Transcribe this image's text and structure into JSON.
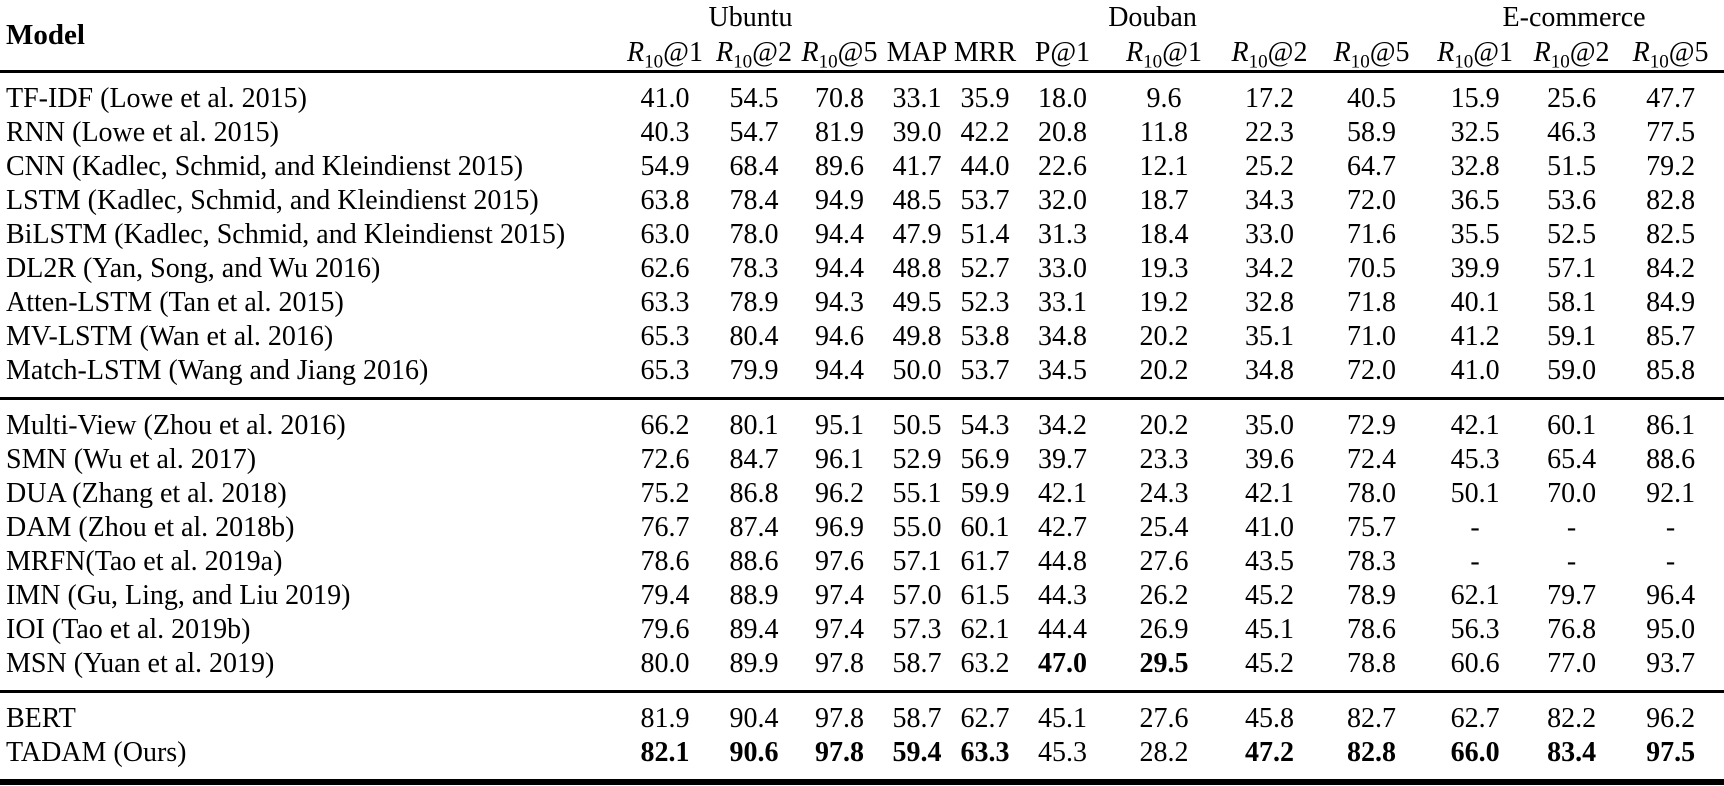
{
  "page": {
    "background_color": "#ffffff",
    "text_color": "#000000"
  },
  "table": {
    "model_header": "Model",
    "groups": [
      {
        "label": "Ubuntu",
        "metrics": [
          "R10@1",
          "R10@2",
          "R10@5"
        ]
      },
      {
        "label": "Douban",
        "metrics": [
          "MAP",
          "MRR",
          "P@1",
          "R10@1",
          "R10@2",
          "R10@5"
        ]
      },
      {
        "label": "E-commerce",
        "metrics": [
          "R10@1",
          "R10@2",
          "R10@5"
        ]
      }
    ],
    "sections": [
      {
        "rows": [
          {
            "model": "TF-IDF (Lowe et al. 2015)",
            "values": [
              "41.0",
              "54.5",
              "70.8",
              "33.1",
              "35.9",
              "18.0",
              "9.6",
              "17.2",
              "40.5",
              "15.9",
              "25.6",
              "47.7"
            ],
            "bold": []
          },
          {
            "model": "RNN (Lowe et al. 2015)",
            "values": [
              "40.3",
              "54.7",
              "81.9",
              "39.0",
              "42.2",
              "20.8",
              "11.8",
              "22.3",
              "58.9",
              "32.5",
              "46.3",
              "77.5"
            ],
            "bold": []
          },
          {
            "model": "CNN (Kadlec, Schmid, and Kleindienst 2015)",
            "values": [
              "54.9",
              "68.4",
              "89.6",
              "41.7",
              "44.0",
              "22.6",
              "12.1",
              "25.2",
              "64.7",
              "32.8",
              "51.5",
              "79.2"
            ],
            "bold": []
          },
          {
            "model": "LSTM (Kadlec, Schmid, and Kleindienst 2015)",
            "values": [
              "63.8",
              "78.4",
              "94.9",
              "48.5",
              "53.7",
              "32.0",
              "18.7",
              "34.3",
              "72.0",
              "36.5",
              "53.6",
              "82.8"
            ],
            "bold": []
          },
          {
            "model": "BiLSTM (Kadlec, Schmid, and Kleindienst 2015)",
            "values": [
              "63.0",
              "78.0",
              "94.4",
              "47.9",
              "51.4",
              "31.3",
              "18.4",
              "33.0",
              "71.6",
              "35.5",
              "52.5",
              "82.5"
            ],
            "bold": []
          },
          {
            "model": "DL2R (Yan, Song, and Wu 2016)",
            "values": [
              "62.6",
              "78.3",
              "94.4",
              "48.8",
              "52.7",
              "33.0",
              "19.3",
              "34.2",
              "70.5",
              "39.9",
              "57.1",
              "84.2"
            ],
            "bold": []
          },
          {
            "model": "Atten-LSTM (Tan et al. 2015)",
            "values": [
              "63.3",
              "78.9",
              "94.3",
              "49.5",
              "52.3",
              "33.1",
              "19.2",
              "32.8",
              "71.8",
              "40.1",
              "58.1",
              "84.9"
            ],
            "bold": []
          },
          {
            "model": "MV-LSTM (Wan et al. 2016)",
            "values": [
              "65.3",
              "80.4",
              "94.6",
              "49.8",
              "53.8",
              "34.8",
              "20.2",
              "35.1",
              "71.0",
              "41.2",
              "59.1",
              "85.7"
            ],
            "bold": []
          },
          {
            "model": "Match-LSTM (Wang and Jiang 2016)",
            "values": [
              "65.3",
              "79.9",
              "94.4",
              "50.0",
              "53.7",
              "34.5",
              "20.2",
              "34.8",
              "72.0",
              "41.0",
              "59.0",
              "85.8"
            ],
            "bold": []
          }
        ]
      },
      {
        "rows": [
          {
            "model": "Multi-View (Zhou et al. 2016)",
            "values": [
              "66.2",
              "80.1",
              "95.1",
              "50.5",
              "54.3",
              "34.2",
              "20.2",
              "35.0",
              "72.9",
              "42.1",
              "60.1",
              "86.1"
            ],
            "bold": []
          },
          {
            "model": "SMN (Wu et al. 2017)",
            "values": [
              "72.6",
              "84.7",
              "96.1",
              "52.9",
              "56.9",
              "39.7",
              "23.3",
              "39.6",
              "72.4",
              "45.3",
              "65.4",
              "88.6"
            ],
            "bold": []
          },
          {
            "model": "DUA (Zhang et al. 2018)",
            "values": [
              "75.2",
              "86.8",
              "96.2",
              "55.1",
              "59.9",
              "42.1",
              "24.3",
              "42.1",
              "78.0",
              "50.1",
              "70.0",
              "92.1"
            ],
            "bold": []
          },
          {
            "model": "DAM (Zhou et al. 2018b)",
            "values": [
              "76.7",
              "87.4",
              "96.9",
              "55.0",
              "60.1",
              "42.7",
              "25.4",
              "41.0",
              "75.7",
              "-",
              "-",
              "-"
            ],
            "bold": []
          },
          {
            "model": "MRFN(Tao et al. 2019a)",
            "values": [
              "78.6",
              "88.6",
              "97.6",
              "57.1",
              "61.7",
              "44.8",
              "27.6",
              "43.5",
              "78.3",
              "-",
              "-",
              "-"
            ],
            "bold": []
          },
          {
            "model": "IMN (Gu, Ling, and Liu 2019)",
            "values": [
              "79.4",
              "88.9",
              "97.4",
              "57.0",
              "61.5",
              "44.3",
              "26.2",
              "45.2",
              "78.9",
              "62.1",
              "79.7",
              "96.4"
            ],
            "bold": []
          },
          {
            "model": "IOI (Tao et al. 2019b)",
            "values": [
              "79.6",
              "89.4",
              "97.4",
              "57.3",
              "62.1",
              "44.4",
              "26.9",
              "45.1",
              "78.6",
              "56.3",
              "76.8",
              "95.0"
            ],
            "bold": []
          },
          {
            "model": "MSN (Yuan et al. 2019)",
            "values": [
              "80.0",
              "89.9",
              "97.8",
              "58.7",
              "63.2",
              "47.0",
              "29.5",
              "45.2",
              "78.8",
              "60.6",
              "77.0",
              "93.7"
            ],
            "bold": [
              5,
              6
            ]
          }
        ]
      },
      {
        "rows": [
          {
            "model": "BERT",
            "values": [
              "81.9",
              "90.4",
              "97.8",
              "58.7",
              "62.7",
              "45.1",
              "27.6",
              "45.8",
              "82.7",
              "62.7",
              "82.2",
              "96.2"
            ],
            "bold": []
          },
          {
            "model": "TADAM (Ours)",
            "values": [
              "82.1",
              "90.6",
              "97.8",
              "59.4",
              "63.3",
              "45.3",
              "28.2",
              "47.2",
              "82.8",
              "66.0",
              "83.4",
              "97.5"
            ],
            "bold": [
              0,
              1,
              2,
              3,
              4,
              7,
              8,
              9,
              10,
              11
            ]
          }
        ]
      }
    ]
  }
}
